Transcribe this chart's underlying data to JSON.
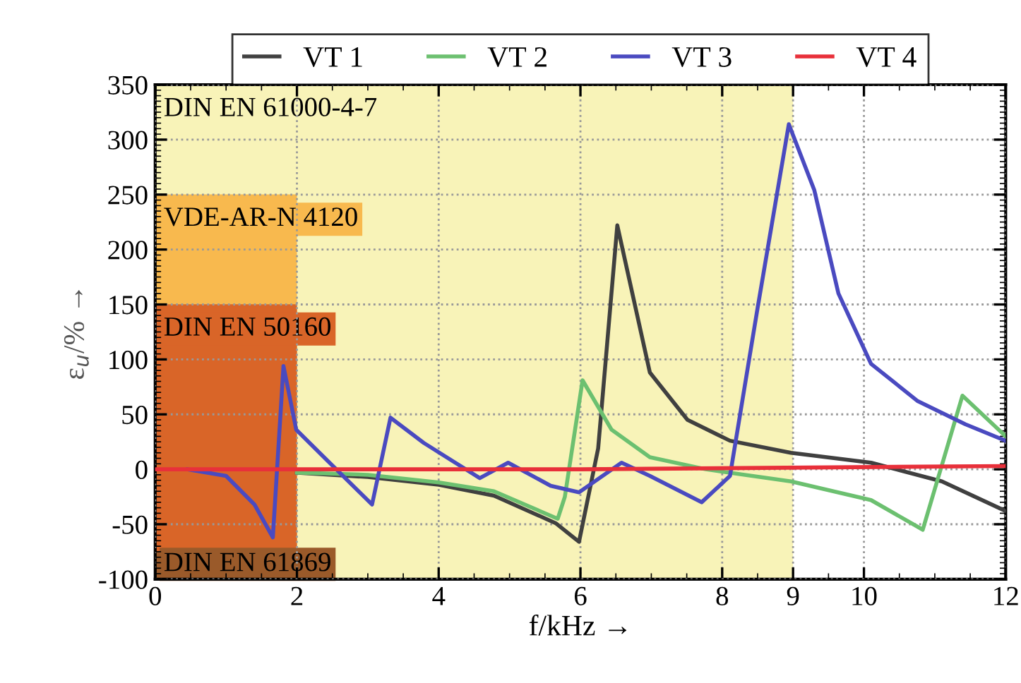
{
  "chart_data": {
    "type": "line",
    "xlabel": "f/kHz →",
    "ylabel": "ε$_{u}$/% →",
    "xlim": [
      0,
      12
    ],
    "ylim": [
      -100,
      350
    ],
    "xticks": [
      0,
      2,
      4,
      6,
      8,
      9,
      10,
      12
    ],
    "yticks": [
      -100,
      -50,
      0,
      50,
      100,
      150,
      200,
      250,
      300,
      350
    ],
    "grid": true,
    "legend": "top",
    "line_style": "solid",
    "marker": "none",
    "bands": [
      {
        "axis": "x",
        "from": 0,
        "to": 9,
        "label": "DIN EN 61000-4-7",
        "color": "#f8f3b8"
      },
      {
        "axis": "x",
        "from": 0,
        "to": 2,
        "label": "VDE-AR-N 4120",
        "color": "#f8b94e"
      },
      {
        "axis": "x",
        "from": 0,
        "to": 2,
        "label": "DIN EN 50160",
        "color": "#d96528"
      },
      {
        "axis": "x",
        "from": 0,
        "to": 2,
        "label": "DIN EN 61869",
        "color": "#9a5a2a"
      }
    ],
    "series": [
      {
        "name": "VT 1",
        "color": "#404040",
        "x": [
          2,
          3,
          4,
          4.78,
          5.65,
          5.98,
          6.25,
          6.52,
          6.98,
          7.51,
          8.11,
          8.97,
          10.1,
          11.1,
          12
        ],
        "values": [
          -3,
          -7,
          -14,
          -24,
          -49,
          -66,
          19,
          222,
          88,
          45,
          26,
          15,
          6,
          -11,
          -38
        ]
      },
      {
        "name": "VT 2",
        "color": "#6cc070",
        "x": [
          2,
          3,
          4,
          4.78,
          5.68,
          5.78,
          6.03,
          6.44,
          6.98,
          7.77,
          8.97,
          10.1,
          10.83,
          11.39,
          12
        ],
        "values": [
          -3,
          -5,
          -12,
          -20,
          -45,
          -25,
          81,
          36,
          11,
          0,
          -11,
          -28,
          -55,
          67,
          30
        ]
      },
      {
        "name": "VT 3",
        "color": "#4a4ac0",
        "x": [
          0.46,
          1.0,
          1.4,
          1.66,
          1.81,
          1.99,
          2.46,
          3.06,
          3.32,
          3.79,
          4.58,
          4.98,
          5.58,
          5.98,
          6.58,
          6.98,
          7.71,
          8.11,
          8.5,
          8.94,
          9.3,
          9.64,
          10.1,
          10.76,
          11.43,
          12
        ],
        "values": [
          0,
          -6,
          -32,
          -62,
          94,
          36,
          6,
          -32,
          47,
          24,
          -8,
          6,
          -15,
          -21,
          6,
          -6,
          -30,
          -6,
          147,
          314,
          254,
          160,
          96,
          62,
          41,
          26
        ]
      },
      {
        "name": "VT 4",
        "color": "#e8303a",
        "x": [
          0,
          6,
          12
        ],
        "values": [
          0,
          0,
          3
        ]
      }
    ]
  }
}
